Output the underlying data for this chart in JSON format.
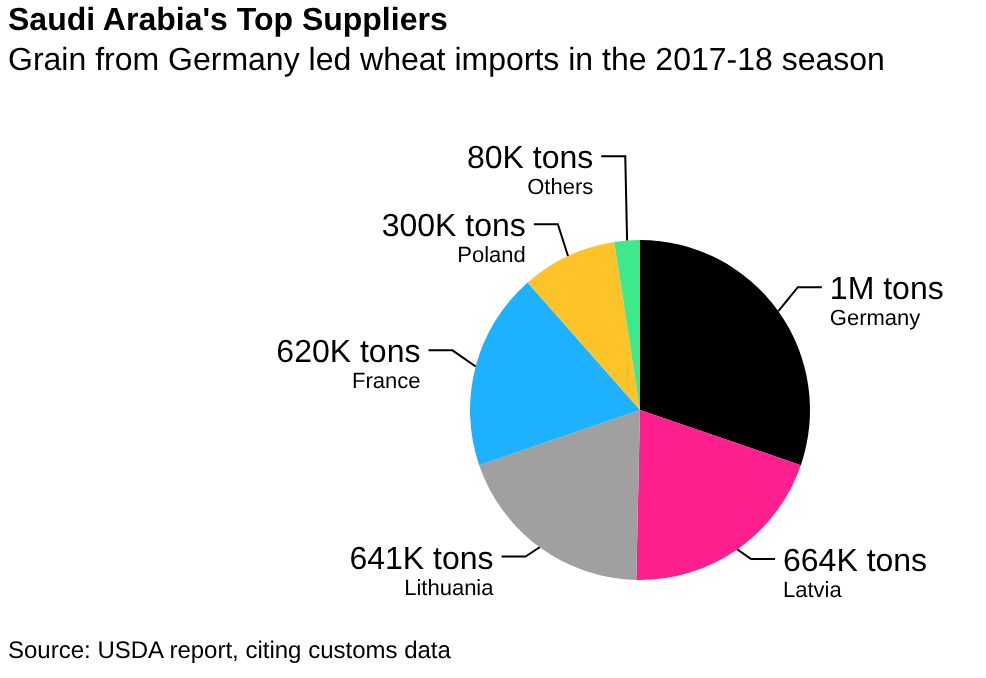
{
  "chart_data": {
    "type": "pie",
    "title": "Saudi Arabia's Top Suppliers",
    "subtitle": "Grain from Germany led wheat imports in the 2017-18 season",
    "categories": [
      "Germany",
      "Latvia",
      "Lithuania",
      "France",
      "Poland",
      "Others"
    ],
    "values": [
      1000000,
      664000,
      641000,
      620000,
      300000,
      80000
    ],
    "value_labels": [
      "1M tons",
      "664K tons",
      "641K tons",
      "620K tons",
      "300K tons",
      "80K tons"
    ],
    "colors": [
      "#000000",
      "#ff1f8e",
      "#a0a0a0",
      "#1eb1ff",
      "#ffc32a",
      "#3ee98c"
    ],
    "annotations": [
      "Source: USDA report, citing customs data"
    ]
  }
}
